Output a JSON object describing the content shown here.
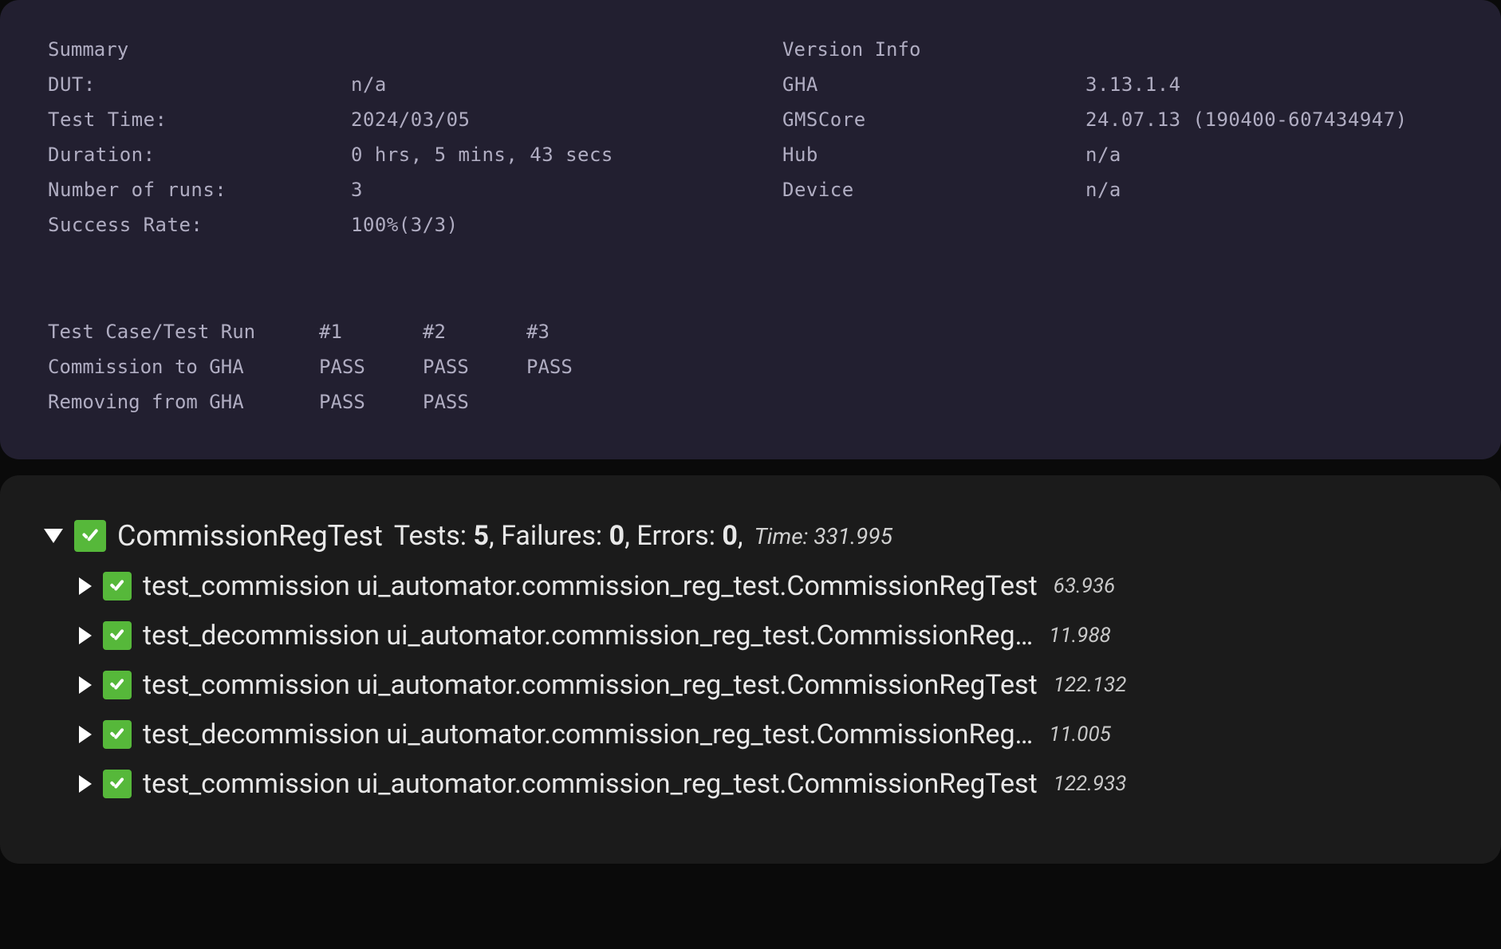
{
  "colors": {
    "summary_bg": "#221f30",
    "tests_bg": "#1b1b1b",
    "text_muted": "#b0adc2",
    "text_light": "#e8e8e8",
    "pass_green": "#56b83a"
  },
  "summary": {
    "header": "Summary",
    "rows": [
      {
        "label": "DUT:",
        "value": "n/a"
      },
      {
        "label": "Test Time:",
        "value": "2024/03/05"
      },
      {
        "label": "Duration:",
        "value": "0 hrs, 5 mins, 43 secs"
      },
      {
        "label": "Number of runs:",
        "value": "3"
      },
      {
        "label": "Success Rate:",
        "value": "100%(3/3)"
      }
    ]
  },
  "version": {
    "header": "Version Info",
    "rows": [
      {
        "label": "GHA",
        "value": "3.13.1.4"
      },
      {
        "label": "GMSCore",
        "value": "24.07.13 (190400-607434947)"
      },
      {
        "label": "Hub",
        "value": "n/a"
      },
      {
        "label": "Device",
        "value": "n/a"
      }
    ]
  },
  "runs": {
    "header_label": "Test Case/Test Run",
    "headers": [
      "#1",
      "#2",
      "#3"
    ],
    "rows": [
      {
        "label": "Commission to GHA",
        "cells": [
          "PASS",
          "PASS",
          "PASS"
        ]
      },
      {
        "label": "Removing from GHA",
        "cells": [
          "PASS",
          "PASS",
          ""
        ]
      }
    ]
  },
  "suite": {
    "name": "CommissionRegTest",
    "tests_label": "Tests:",
    "tests": "5",
    "failures_label": "Failures:",
    "failures": "0",
    "errors_label": "Errors:",
    "errors": "0",
    "time_label": "Time:",
    "time": "331.995",
    "cases": [
      {
        "name": "test_commission ui_automator.commission_reg_test.CommissionRegTest",
        "time": "63.936"
      },
      {
        "name": "test_decommission ui_automator.commission_reg_test.CommissionReg…",
        "time": "11.988"
      },
      {
        "name": "test_commission ui_automator.commission_reg_test.CommissionRegTest",
        "time": "122.132"
      },
      {
        "name": "test_decommission ui_automator.commission_reg_test.CommissionReg…",
        "time": "11.005"
      },
      {
        "name": "test_commission ui_automator.commission_reg_test.CommissionRegTest",
        "time": "122.933"
      }
    ]
  }
}
